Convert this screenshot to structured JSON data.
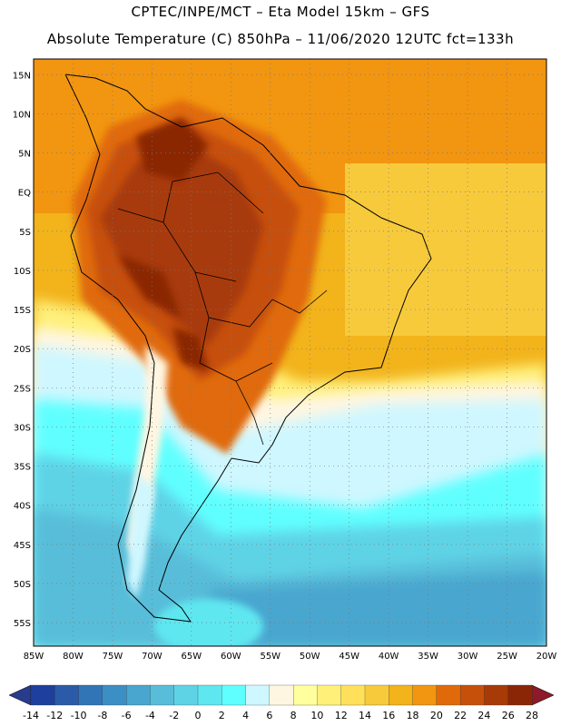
{
  "header": {
    "line1": "CPTEC/INPE/MCT –  Eta Model 15km – GFS",
    "line2": "Absolute Temperature (C) 850hPa – 11/06/2020 12UTC fct=133h"
  },
  "map": {
    "lat_labels": [
      "15N",
      "10N",
      "5N",
      "EQ",
      "5S",
      "10S",
      "15S",
      "20S",
      "25S",
      "30S",
      "35S",
      "40S",
      "45S",
      "50S",
      "55S"
    ],
    "lon_labels": [
      "85W",
      "80W",
      "75W",
      "70W",
      "65W",
      "60W",
      "55W",
      "50W",
      "45W",
      "40W",
      "35W",
      "30W",
      "25W",
      "20W"
    ],
    "lat_range": [
      17,
      -58
    ],
    "lon_range": [
      -85,
      -20
    ]
  },
  "colorbar": {
    "ticks": [
      "-14",
      "-12",
      "-10",
      "-8",
      "-6",
      "-4",
      "-2",
      "0",
      "2",
      "4",
      "6",
      "8",
      "10",
      "12",
      "14",
      "16",
      "18",
      "20",
      "22",
      "24",
      "26",
      "28"
    ],
    "colors": [
      "#1e3f9c",
      "#2a5aa8",
      "#3175b6",
      "#3c8fc4",
      "#48a6cf",
      "#58bdd9",
      "#5fd3e6",
      "#5fe7f0",
      "#60ffff",
      "#cff7ff",
      "#fff6e2",
      "#ffff9e",
      "#fff07a",
      "#ffe05a",
      "#f7ca3c",
      "#f2b31b",
      "#f29510",
      "#e06a0a",
      "#c6500a",
      "#a83a08",
      "#8a2606"
    ],
    "under_color": "#283c8c",
    "over_color": "#8c1a28"
  }
}
